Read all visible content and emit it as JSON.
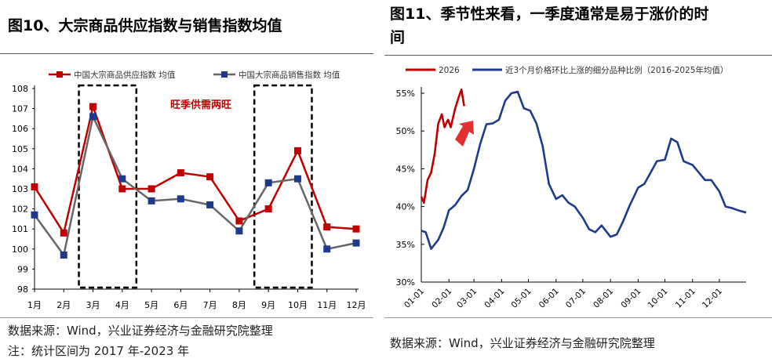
{
  "left": {
    "title": "图10、大宗商品供应指数与销售指数均值",
    "source": "数据来源：Wind，兴业证券经济与金融研究院整理",
    "note": "注：统计区间为 2017 年-2023 年"
  },
  "right": {
    "title_line1": "图11、季节性来看，一季度通常是易于涨价的时",
    "title_line2": "间",
    "source": "数据来源：Wind，兴业证券经济与金融研究院整理"
  },
  "chart_data": [
    {
      "type": "line",
      "categories": [
        "1月",
        "2月",
        "3月",
        "4月",
        "5月",
        "6月",
        "7月",
        "8月",
        "9月",
        "10月",
        "11月",
        "12月"
      ],
      "series": [
        {
          "name": "中国大宗商品供应指数 均值",
          "color": "#c00000",
          "marker": "square",
          "values": [
            103.1,
            100.8,
            107.1,
            103.0,
            103.0,
            103.8,
            103.6,
            101.4,
            102.0,
            104.9,
            101.1,
            101.0
          ]
        },
        {
          "name": "中国大宗商品销售指数 均值",
          "color": "#666666",
          "marker_color": "#1f3a8a",
          "marker": "square",
          "values": [
            101.7,
            99.7,
            106.6,
            103.5,
            102.4,
            102.5,
            102.2,
            100.9,
            103.3,
            103.5,
            100.0,
            100.3
          ]
        }
      ],
      "ylim": [
        98,
        108
      ],
      "yticks": [
        98,
        99,
        100,
        101,
        102,
        103,
        104,
        105,
        106,
        107,
        108
      ],
      "annotation": "旺季供需两旺",
      "highlight_boxes": [
        [
          "3月",
          "4月"
        ],
        [
          "9月",
          "10月"
        ]
      ],
      "legend": "top"
    },
    {
      "type": "line",
      "xticks": [
        "01-01",
        "02-01",
        "03-01",
        "04-01",
        "05-01",
        "06-01",
        "07-01",
        "08-01",
        "09-01",
        "10-01",
        "11-01",
        "12-01"
      ],
      "ylim": [
        30,
        55
      ],
      "yticks": [
        "30%",
        "35%",
        "40%",
        "45%",
        "50%",
        "55%"
      ],
      "legend": "top",
      "series": [
        {
          "name": "2026",
          "color": "#c00000",
          "x": [
            "01-01",
            "01-04",
            "01-08",
            "01-12",
            "01-16",
            "01-20",
            "01-24",
            "01-27",
            "01-31",
            "02-03",
            "02-08",
            "02-12",
            "02-15",
            "02-18"
          ],
          "values": [
            41.3,
            40.5,
            43.5,
            44.5,
            47,
            51,
            52.2,
            50.5,
            51.5,
            50.5,
            53,
            54.5,
            55.5,
            53.3
          ]
        },
        {
          "name": "近3个月价格环比上涨的细分品种比例（2016-2025年均值）",
          "color": "#1f3a8a",
          "x": [
            "01-01",
            "01-06",
            "01-12",
            "01-20",
            "01-26",
            "02-01",
            "02-08",
            "02-15",
            "02-22",
            "03-01",
            "03-08",
            "03-15",
            "03-22",
            "03-29",
            "04-05",
            "04-12",
            "04-19",
            "04-26",
            "05-03",
            "05-10",
            "05-17",
            "05-24",
            "06-01",
            "06-08",
            "06-15",
            "06-22",
            "07-01",
            "07-08",
            "07-15",
            "07-22",
            "08-01",
            "08-08",
            "08-15",
            "08-22",
            "09-01",
            "09-08",
            "09-15",
            "09-22",
            "10-01",
            "10-08",
            "10-15",
            "10-22",
            "11-01",
            "11-08",
            "11-15",
            "11-22",
            "12-01",
            "12-08",
            "12-15",
            "12-22",
            "12-31"
          ],
          "values": [
            36.8,
            36.6,
            34.4,
            35.6,
            37.2,
            39.5,
            40.2,
            41.4,
            42.2,
            45,
            48.3,
            50.9,
            51,
            51.5,
            54,
            55,
            55.2,
            53,
            52.7,
            51,
            48,
            43,
            41,
            41.5,
            40.5,
            40,
            38.5,
            37,
            36.6,
            37.5,
            36,
            36.3,
            38,
            40,
            42.5,
            43,
            44.5,
            46,
            46.2,
            49,
            48.5,
            46,
            45.5,
            44.5,
            43.5,
            43.5,
            42,
            40,
            39.8,
            39.5,
            39.2
          ]
        }
      ]
    }
  ]
}
